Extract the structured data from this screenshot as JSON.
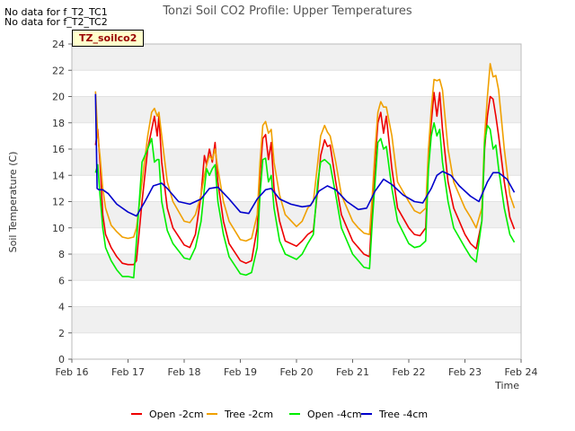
{
  "notices": [
    "No data for f_T2_TC1",
    "No data for f_T2_TC2"
  ],
  "tag": "TZ_soilco2",
  "chart_data": {
    "type": "line",
    "title": "Tonzi Soil CO2 Profile: Upper Temperatures",
    "xlabel": "Time",
    "ylabel": "Soil Temperature (C)",
    "xlim": [
      "Feb 16",
      "Feb 24"
    ],
    "ylim": [
      0,
      24
    ],
    "x_ticks": [
      "Feb 16",
      "Feb 17",
      "Feb 18",
      "Feb 19",
      "Feb 20",
      "Feb 21",
      "Feb 22",
      "Feb 23",
      "Feb 24"
    ],
    "y_ticks": [
      0,
      2,
      4,
      6,
      8,
      10,
      12,
      14,
      16,
      18,
      20,
      22,
      24
    ],
    "grid": "horizontal bands",
    "legend_position": "bottom",
    "series": [
      {
        "name": "Open -2cm",
        "color": "#ee0000",
        "x": [
          16.42,
          16.46,
          16.5,
          16.55,
          16.6,
          16.7,
          16.8,
          16.9,
          17.0,
          17.1,
          17.15,
          17.25,
          17.35,
          17.42,
          17.47,
          17.52,
          17.55,
          17.6,
          17.7,
          17.8,
          18.0,
          18.1,
          18.2,
          18.3,
          18.36,
          18.4,
          18.45,
          18.5,
          18.55,
          18.6,
          18.7,
          18.8,
          19.0,
          19.1,
          19.2,
          19.3,
          19.35,
          19.4,
          19.45,
          19.5,
          19.55,
          19.6,
          19.7,
          19.8,
          20.0,
          20.1,
          20.2,
          20.3,
          20.38,
          20.43,
          20.5,
          20.55,
          20.6,
          20.7,
          20.8,
          21.0,
          21.1,
          21.2,
          21.3,
          21.35,
          21.4,
          21.45,
          21.5,
          21.55,
          21.6,
          21.7,
          21.8,
          22.0,
          22.1,
          22.2,
          22.3,
          22.35,
          22.4,
          22.45,
          22.5,
          22.55,
          22.6,
          22.7,
          22.8,
          23.0,
          23.1,
          23.2,
          23.3,
          23.35,
          23.4,
          23.45,
          23.5,
          23.55,
          23.6,
          23.7,
          23.8,
          23.88
        ],
        "y": [
          16.3,
          17.5,
          15.0,
          11.0,
          9.5,
          8.5,
          7.8,
          7.3,
          7.2,
          7.2,
          7.5,
          12.0,
          16.0,
          17.5,
          18.5,
          17.0,
          18.5,
          15.0,
          11.5,
          10.0,
          8.7,
          8.5,
          9.5,
          12.5,
          15.5,
          14.8,
          16.0,
          15.0,
          16.5,
          13.5,
          10.5,
          8.8,
          7.5,
          7.3,
          7.5,
          10.0,
          14.0,
          16.8,
          17.1,
          15.2,
          16.5,
          13.0,
          10.5,
          9.0,
          8.6,
          9.0,
          9.5,
          9.8,
          13.0,
          15.5,
          16.7,
          16.2,
          16.3,
          13.5,
          11.0,
          9.0,
          8.5,
          8.0,
          7.8,
          11.5,
          15.0,
          18.0,
          18.8,
          17.2,
          18.5,
          14.5,
          11.5,
          10.0,
          9.5,
          9.4,
          10.0,
          15.0,
          18.0,
          20.3,
          18.5,
          20.3,
          17.5,
          13.5,
          11.5,
          9.5,
          8.8,
          8.4,
          10.5,
          16.0,
          18.5,
          20.0,
          19.8,
          18.5,
          17.0,
          13.5,
          10.8,
          9.9
        ]
      },
      {
        "name": "Tree -2cm",
        "color": "#f0a000",
        "x": [
          16.42,
          16.46,
          16.5,
          16.55,
          16.6,
          16.7,
          16.8,
          16.9,
          17.0,
          17.1,
          17.15,
          17.25,
          17.35,
          17.42,
          17.47,
          17.52,
          17.55,
          17.6,
          17.7,
          17.8,
          18.0,
          18.1,
          18.2,
          18.3,
          18.36,
          18.4,
          18.45,
          18.5,
          18.55,
          18.6,
          18.7,
          18.8,
          19.0,
          19.1,
          19.2,
          19.3,
          19.35,
          19.4,
          19.45,
          19.5,
          19.55,
          19.6,
          19.7,
          19.8,
          20.0,
          20.1,
          20.2,
          20.3,
          20.38,
          20.43,
          20.5,
          20.55,
          20.6,
          20.7,
          20.8,
          21.0,
          21.1,
          21.2,
          21.3,
          21.35,
          21.4,
          21.45,
          21.5,
          21.55,
          21.6,
          21.7,
          21.8,
          22.0,
          22.1,
          22.2,
          22.3,
          22.35,
          22.4,
          22.45,
          22.5,
          22.55,
          22.6,
          22.7,
          22.8,
          23.0,
          23.1,
          23.2,
          23.3,
          23.35,
          23.4,
          23.45,
          23.5,
          23.55,
          23.6,
          23.7,
          23.8,
          23.88
        ],
        "y": [
          20.4,
          17.0,
          15.5,
          13.0,
          11.5,
          10.2,
          9.7,
          9.3,
          9.2,
          9.3,
          10.0,
          13.5,
          17.0,
          18.8,
          19.1,
          18.5,
          18.8,
          17.0,
          13.5,
          12.0,
          10.5,
          10.4,
          11.0,
          12.5,
          14.0,
          14.8,
          15.5,
          15.2,
          16.0,
          14.5,
          12.0,
          10.5,
          9.1,
          9.0,
          9.2,
          11.0,
          15.0,
          17.8,
          18.1,
          17.2,
          17.5,
          15.0,
          12.5,
          11.0,
          10.1,
          10.5,
          11.5,
          12.0,
          15.0,
          17.0,
          17.8,
          17.3,
          17.0,
          15.0,
          12.5,
          10.5,
          10.0,
          9.6,
          9.5,
          12.5,
          16.0,
          18.8,
          19.6,
          19.2,
          19.2,
          17.0,
          13.5,
          12.0,
          11.3,
          11.1,
          11.5,
          16.0,
          19.0,
          21.3,
          21.2,
          21.3,
          20.5,
          16.0,
          13.5,
          11.5,
          10.8,
          10.0,
          11.5,
          17.0,
          20.0,
          22.5,
          21.5,
          21.6,
          20.5,
          16.0,
          12.5,
          11.5
        ]
      },
      {
        "name": "Open -4cm",
        "color": "#00ee00",
        "x": [
          16.42,
          16.46,
          16.5,
          16.55,
          16.6,
          16.7,
          16.8,
          16.9,
          17.0,
          17.1,
          17.15,
          17.25,
          17.35,
          17.42,
          17.47,
          17.52,
          17.55,
          17.6,
          17.7,
          17.8,
          18.0,
          18.1,
          18.2,
          18.3,
          18.36,
          18.4,
          18.45,
          18.5,
          18.55,
          18.6,
          18.7,
          18.8,
          19.0,
          19.1,
          19.2,
          19.3,
          19.35,
          19.4,
          19.45,
          19.5,
          19.55,
          19.6,
          19.7,
          19.8,
          20.0,
          20.1,
          20.2,
          20.3,
          20.38,
          20.43,
          20.5,
          20.55,
          20.6,
          20.7,
          20.8,
          21.0,
          21.1,
          21.2,
          21.3,
          21.35,
          21.4,
          21.45,
          21.5,
          21.55,
          21.6,
          21.7,
          21.8,
          22.0,
          22.1,
          22.2,
          22.3,
          22.35,
          22.4,
          22.45,
          22.5,
          22.55,
          22.6,
          22.7,
          22.8,
          23.0,
          23.1,
          23.2,
          23.3,
          23.35,
          23.4,
          23.45,
          23.5,
          23.55,
          23.6,
          23.7,
          23.8,
          23.88
        ],
        "y": [
          14.2,
          14.8,
          12.5,
          10.0,
          8.5,
          7.5,
          6.8,
          6.3,
          6.3,
          6.2,
          9.0,
          15.0,
          16.0,
          16.8,
          15.0,
          15.2,
          15.2,
          12.0,
          9.8,
          8.8,
          7.7,
          7.6,
          8.5,
          10.5,
          13.0,
          14.5,
          14.0,
          14.5,
          14.8,
          12.0,
          9.5,
          7.8,
          6.5,
          6.4,
          6.6,
          8.5,
          12.5,
          15.2,
          15.3,
          13.5,
          14.0,
          11.5,
          9.0,
          8.0,
          7.6,
          8.0,
          8.8,
          9.5,
          13.5,
          15.0,
          15.2,
          15.0,
          14.8,
          12.5,
          10.0,
          8.0,
          7.5,
          7.0,
          6.9,
          10.5,
          13.5,
          16.5,
          16.8,
          16.0,
          16.2,
          13.0,
          10.5,
          8.8,
          8.5,
          8.6,
          9.0,
          14.5,
          17.0,
          18.0,
          17.0,
          17.5,
          15.0,
          12.0,
          10.0,
          8.5,
          7.8,
          7.4,
          10.5,
          16.5,
          17.8,
          17.5,
          16.0,
          16.3,
          14.5,
          11.5,
          9.5,
          8.9
        ]
      },
      {
        "name": "Tree -4cm",
        "color": "#0000cc",
        "x": [
          16.42,
          16.45,
          16.48,
          16.5,
          16.55,
          16.65,
          16.8,
          17.0,
          17.15,
          17.3,
          17.45,
          17.6,
          17.7,
          17.9,
          18.1,
          18.3,
          18.45,
          18.6,
          18.8,
          19.0,
          19.15,
          19.3,
          19.45,
          19.55,
          19.7,
          19.9,
          20.1,
          20.25,
          20.4,
          20.55,
          20.7,
          20.9,
          21.1,
          21.25,
          21.4,
          21.55,
          21.7,
          21.9,
          22.1,
          22.25,
          22.4,
          22.5,
          22.6,
          22.75,
          22.9,
          23.1,
          23.25,
          23.4,
          23.5,
          23.6,
          23.75,
          23.88
        ],
        "y": [
          20.2,
          13.0,
          12.9,
          12.9,
          12.9,
          12.6,
          11.8,
          11.2,
          10.9,
          12.0,
          13.2,
          13.4,
          13.0,
          12.0,
          11.8,
          12.2,
          13.0,
          13.1,
          12.2,
          11.2,
          11.1,
          12.2,
          12.9,
          13.0,
          12.2,
          11.8,
          11.6,
          11.7,
          12.8,
          13.2,
          12.9,
          12.0,
          11.4,
          11.5,
          12.8,
          13.7,
          13.3,
          12.5,
          12.0,
          11.9,
          13.0,
          14.0,
          14.3,
          14.0,
          13.2,
          12.4,
          12.0,
          13.5,
          14.2,
          14.2,
          13.7,
          12.7
        ]
      }
    ]
  }
}
